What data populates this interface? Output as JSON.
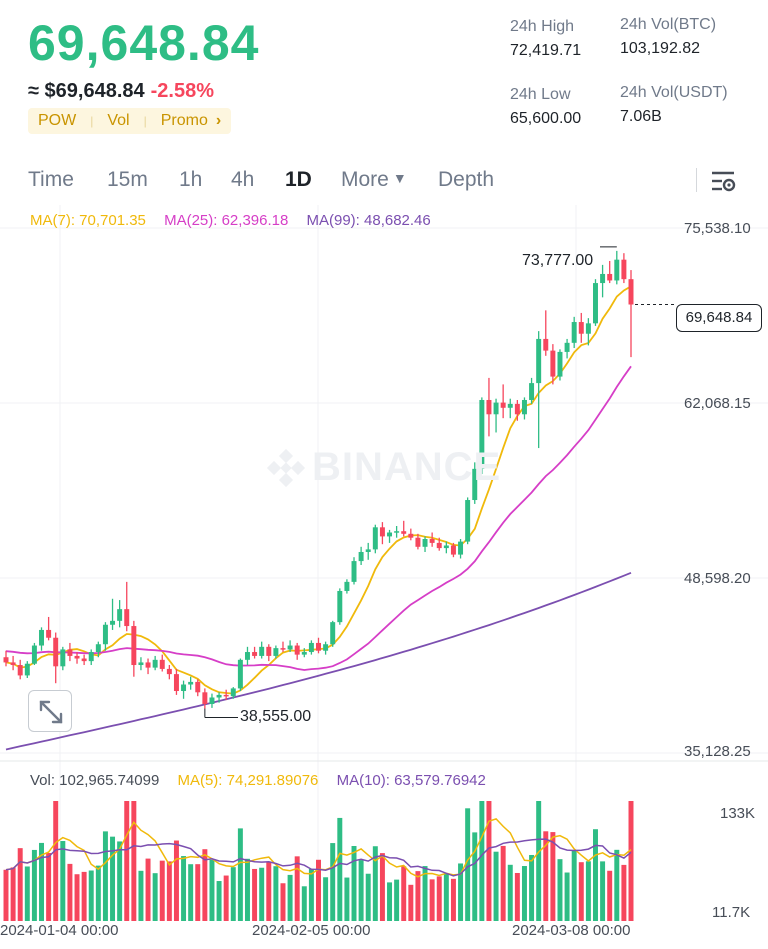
{
  "header": {
    "last_price": "69,648.84",
    "usd_price": "≈ $69,648.84",
    "change_pct": "-2.58%",
    "tags": [
      "POW",
      "Vol",
      "Promo"
    ],
    "stats": {
      "high_label": "24h High",
      "high_value": "72,419.71",
      "low_label": "24h Low",
      "low_value": "65,600.00",
      "vol_btc_label": "24h Vol(BTC)",
      "vol_btc_value": "103,192.82",
      "vol_usdt_label": "24h Vol(USDT)",
      "vol_usdt_value": "7.06B"
    }
  },
  "tabs": {
    "time": "Time",
    "m15": "15m",
    "h1": "1h",
    "h4": "4h",
    "d1": "1D",
    "more": "More",
    "depth": "Depth"
  },
  "ma_legend": {
    "ma7": "MA(7): 70,701.35",
    "ma25": "MA(25): 62,396.18",
    "ma99": "MA(99): 48,682.46"
  },
  "vol_legend": {
    "vol": "Vol: 102,965.74099",
    "ma5": "MA(5): 74,291.89076",
    "ma10": "MA(10): 63,579.76942"
  },
  "watermark": "BINANCE",
  "colors": {
    "up": "#2ebd85",
    "down": "#f6465d",
    "ma7": "#f0b90b",
    "ma25": "#d63ec7",
    "ma99": "#7b4fb0",
    "tag": "#c99400"
  },
  "chart_data": {
    "type": "candlestick",
    "interval": "1D",
    "price_axis_labels": [
      "75,538.10",
      "62,068.15",
      "48,598.20",
      "35,128.25"
    ],
    "price_range": [
      35128.25,
      75538.1
    ],
    "volume_axis_labels": [
      "133K",
      "11.7K"
    ],
    "x_labels": [
      "2024-01-04 00:00",
      "2024-02-05 00:00",
      "2024-03-08 00:00"
    ],
    "current_price": "69,648.84",
    "high_marker": "73,777.00",
    "low_marker": "38,555.00",
    "candles": [
      [
        42500,
        43000,
        41800,
        42100
      ],
      [
        42100,
        42600,
        41500,
        41900
      ],
      [
        41900,
        42300,
        40800,
        41100
      ],
      [
        41100,
        42200,
        40900,
        42000
      ],
      [
        42000,
        43600,
        41900,
        43400
      ],
      [
        43400,
        44800,
        43000,
        44600
      ],
      [
        44600,
        45600,
        43800,
        44000
      ],
      [
        44000,
        44400,
        40500,
        41800
      ],
      [
        41800,
        43300,
        41500,
        43100
      ],
      [
        43100,
        43600,
        42200,
        42600
      ],
      [
        42600,
        42900,
        42000,
        42400
      ],
      [
        42400,
        42700,
        41900,
        42200
      ],
      [
        42200,
        43100,
        41900,
        42900
      ],
      [
        42900,
        43700,
        42500,
        43500
      ],
      [
        43500,
        45200,
        43000,
        45000
      ],
      [
        45000,
        47000,
        44600,
        45300
      ],
      [
        45300,
        46900,
        44800,
        46200
      ],
      [
        46200,
        48300,
        44500,
        44900
      ],
      [
        44900,
        45300,
        41000,
        41900
      ],
      [
        41900,
        42500,
        41500,
        42100
      ],
      [
        42100,
        42400,
        41200,
        41700
      ],
      [
        41700,
        42600,
        41500,
        42300
      ],
      [
        42300,
        42700,
        41400,
        41600
      ],
      [
        41600,
        41900,
        40800,
        41200
      ],
      [
        41200,
        41600,
        39600,
        39900
      ],
      [
        39900,
        40700,
        39300,
        40400
      ],
      [
        40400,
        41000,
        40000,
        40600
      ],
      [
        40600,
        40800,
        39500,
        39800
      ],
      [
        39800,
        40100,
        38555,
        38900
      ],
      [
        38900,
        39700,
        38600,
        39400
      ],
      [
        39400,
        39800,
        39000,
        39600
      ],
      [
        39600,
        40000,
        39200,
        39500
      ],
      [
        39500,
        40200,
        39300,
        40100
      ],
      [
        40100,
        42400,
        39900,
        42300
      ],
      [
        42300,
        43300,
        41900,
        42900
      ],
      [
        42900,
        43300,
        42400,
        42600
      ],
      [
        42600,
        43700,
        42400,
        43300
      ],
      [
        43300,
        43500,
        42200,
        42600
      ],
      [
        42600,
        43400,
        42400,
        43200
      ],
      [
        43200,
        43700,
        42900,
        43100
      ],
      [
        43100,
        43800,
        42900,
        43400
      ],
      [
        43400,
        43600,
        42300,
        42700
      ],
      [
        42700,
        43200,
        42500,
        42900
      ],
      [
        42900,
        43800,
        42700,
        43600
      ],
      [
        43600,
        44000,
        42800,
        43000
      ],
      [
        43000,
        43700,
        42700,
        43500
      ],
      [
        43500,
        45300,
        43300,
        45200
      ],
      [
        45200,
        47800,
        45000,
        47600
      ],
      [
        47600,
        48500,
        47400,
        48300
      ],
      [
        48300,
        50200,
        48100,
        49900
      ],
      [
        49900,
        51000,
        49600,
        50600
      ],
      [
        50600,
        51300,
        50000,
        50800
      ],
      [
        50800,
        52700,
        50500,
        52500
      ],
      [
        52500,
        52900,
        51200,
        51800
      ],
      [
        51800,
        52300,
        51300,
        52100
      ],
      [
        52100,
        52600,
        51700,
        52200
      ],
      [
        52200,
        53000,
        51800,
        52000
      ],
      [
        52000,
        52400,
        51500,
        51700
      ],
      [
        51700,
        52000,
        50800,
        51000
      ],
      [
        51000,
        51800,
        50600,
        51600
      ],
      [
        51600,
        52100,
        51000,
        51300
      ],
      [
        51300,
        51700,
        50700,
        50900
      ],
      [
        50900,
        51400,
        50500,
        51100
      ],
      [
        51100,
        51300,
        50200,
        50400
      ],
      [
        50400,
        51600,
        50100,
        51400
      ],
      [
        51400,
        54800,
        51200,
        54600
      ],
      [
        54600,
        57500,
        54300,
        57000
      ],
      [
        57000,
        62500,
        56600,
        62300
      ],
      [
        62300,
        64000,
        59500,
        61200
      ],
      [
        61200,
        62400,
        59800,
        62100
      ],
      [
        62100,
        63500,
        60900,
        61700
      ],
      [
        61700,
        62400,
        60900,
        62000
      ],
      [
        62000,
        62300,
        60700,
        61200
      ],
      [
        61200,
        62500,
        60800,
        62300
      ],
      [
        62300,
        64000,
        62000,
        63600
      ],
      [
        63600,
        67600,
        58600,
        67000
      ],
      [
        67000,
        69200,
        65700,
        66100
      ],
      [
        66100,
        66600,
        63500,
        64100
      ],
      [
        64100,
        66200,
        63800,
        66000
      ],
      [
        66000,
        67000,
        65500,
        66700
      ],
      [
        66700,
        68700,
        66300,
        68300
      ],
      [
        68300,
        69000,
        66700,
        67400
      ],
      [
        67400,
        68600,
        66500,
        68200
      ],
      [
        68200,
        71600,
        68000,
        71300
      ],
      [
        71300,
        72700,
        70200,
        72000
      ],
      [
        72000,
        73000,
        71300,
        71500
      ],
      [
        71500,
        73777,
        71200,
        73100
      ],
      [
        73100,
        73600,
        71300,
        71600
      ],
      [
        71600,
        72300,
        65600,
        69648.84
      ]
    ]
  }
}
